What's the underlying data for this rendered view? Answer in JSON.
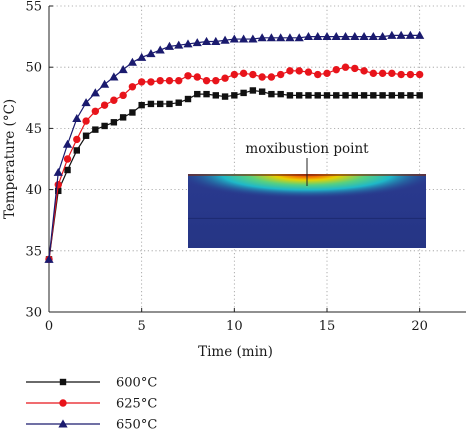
{
  "chart_data": {
    "type": "line",
    "title": "",
    "xlabel": "Time (min)",
    "ylabel": "Temperature (°C)",
    "xlim": [
      0,
      22.5
    ],
    "ylim": [
      30,
      55
    ],
    "xticks": [
      0,
      5,
      10,
      15,
      20
    ],
    "yticks": [
      30,
      35,
      40,
      45,
      50,
      55
    ],
    "grid": "dotted",
    "legend_position": "bottom-left-below-axes",
    "inset": {
      "label": "moxibustion point",
      "description_colors": [
        "#2a3a8f",
        "#1fb8c8",
        "#e8d000",
        "#d02000"
      ]
    },
    "series": [
      {
        "name": "600°C",
        "color": "#111111",
        "marker": "square",
        "x": [
          0,
          0.5,
          1,
          1.5,
          2,
          2.5,
          3,
          3.5,
          4,
          4.5,
          5,
          5.5,
          6,
          6.5,
          7,
          7.5,
          8,
          8.5,
          9,
          9.5,
          10,
          10.5,
          11,
          11.5,
          12,
          12.5,
          13,
          13.5,
          14,
          14.5,
          15,
          15.5,
          16,
          16.5,
          17,
          17.5,
          18,
          18.5,
          19,
          19.5,
          20
        ],
        "values": [
          34.3,
          39.9,
          41.6,
          43.2,
          44.4,
          44.9,
          45.2,
          45.5,
          45.9,
          46.3,
          46.9,
          47.0,
          47.0,
          47.0,
          47.1,
          47.4,
          47.8,
          47.8,
          47.7,
          47.6,
          47.7,
          47.9,
          48.1,
          48.0,
          47.8,
          47.8,
          47.7,
          47.7,
          47.7,
          47.7,
          47.7,
          47.7,
          47.7,
          47.7,
          47.7,
          47.7,
          47.7,
          47.7,
          47.7,
          47.7,
          47.7
        ]
      },
      {
        "name": "625°C",
        "color": "#e8141b",
        "marker": "circle",
        "x": [
          0,
          0.5,
          1,
          1.5,
          2,
          2.5,
          3,
          3.5,
          4,
          4.5,
          5,
          5.5,
          6,
          6.5,
          7,
          7.5,
          8,
          8.5,
          9,
          9.5,
          10,
          10.5,
          11,
          11.5,
          12,
          12.5,
          13,
          13.5,
          14,
          14.5,
          15,
          15.5,
          16,
          16.5,
          17,
          17.5,
          18,
          18.5,
          19,
          19.5,
          20
        ],
        "values": [
          34.3,
          40.4,
          42.5,
          44.1,
          45.6,
          46.4,
          46.9,
          47.3,
          47.7,
          48.4,
          48.8,
          48.8,
          48.9,
          48.9,
          48.9,
          49.3,
          49.2,
          48.9,
          48.9,
          49.1,
          49.4,
          49.5,
          49.4,
          49.2,
          49.2,
          49.4,
          49.7,
          49.7,
          49.6,
          49.4,
          49.5,
          49.8,
          50.0,
          49.9,
          49.7,
          49.5,
          49.5,
          49.5,
          49.4,
          49.4,
          49.4
        ]
      },
      {
        "name": "650°C",
        "color": "#1a1a6e",
        "marker": "triangle",
        "x": [
          0,
          0.5,
          1,
          1.5,
          2,
          2.5,
          3,
          3.5,
          4,
          4.5,
          5,
          5.5,
          6,
          6.5,
          7,
          7.5,
          8,
          8.5,
          9,
          9.5,
          10,
          10.5,
          11,
          11.5,
          12,
          12.5,
          13,
          13.5,
          14,
          14.5,
          15,
          15.5,
          16,
          16.5,
          17,
          17.5,
          18,
          18.5,
          19,
          19.5,
          20
        ],
        "values": [
          34.3,
          41.4,
          43.7,
          45.8,
          47.1,
          47.9,
          48.6,
          49.2,
          49.8,
          50.4,
          50.8,
          51.1,
          51.4,
          51.7,
          51.8,
          51.9,
          52.0,
          52.1,
          52.1,
          52.2,
          52.3,
          52.3,
          52.3,
          52.4,
          52.4,
          52.4,
          52.4,
          52.4,
          52.5,
          52.5,
          52.5,
          52.5,
          52.5,
          52.5,
          52.5,
          52.5,
          52.5,
          52.6,
          52.6,
          52.6,
          52.6
        ]
      }
    ]
  }
}
